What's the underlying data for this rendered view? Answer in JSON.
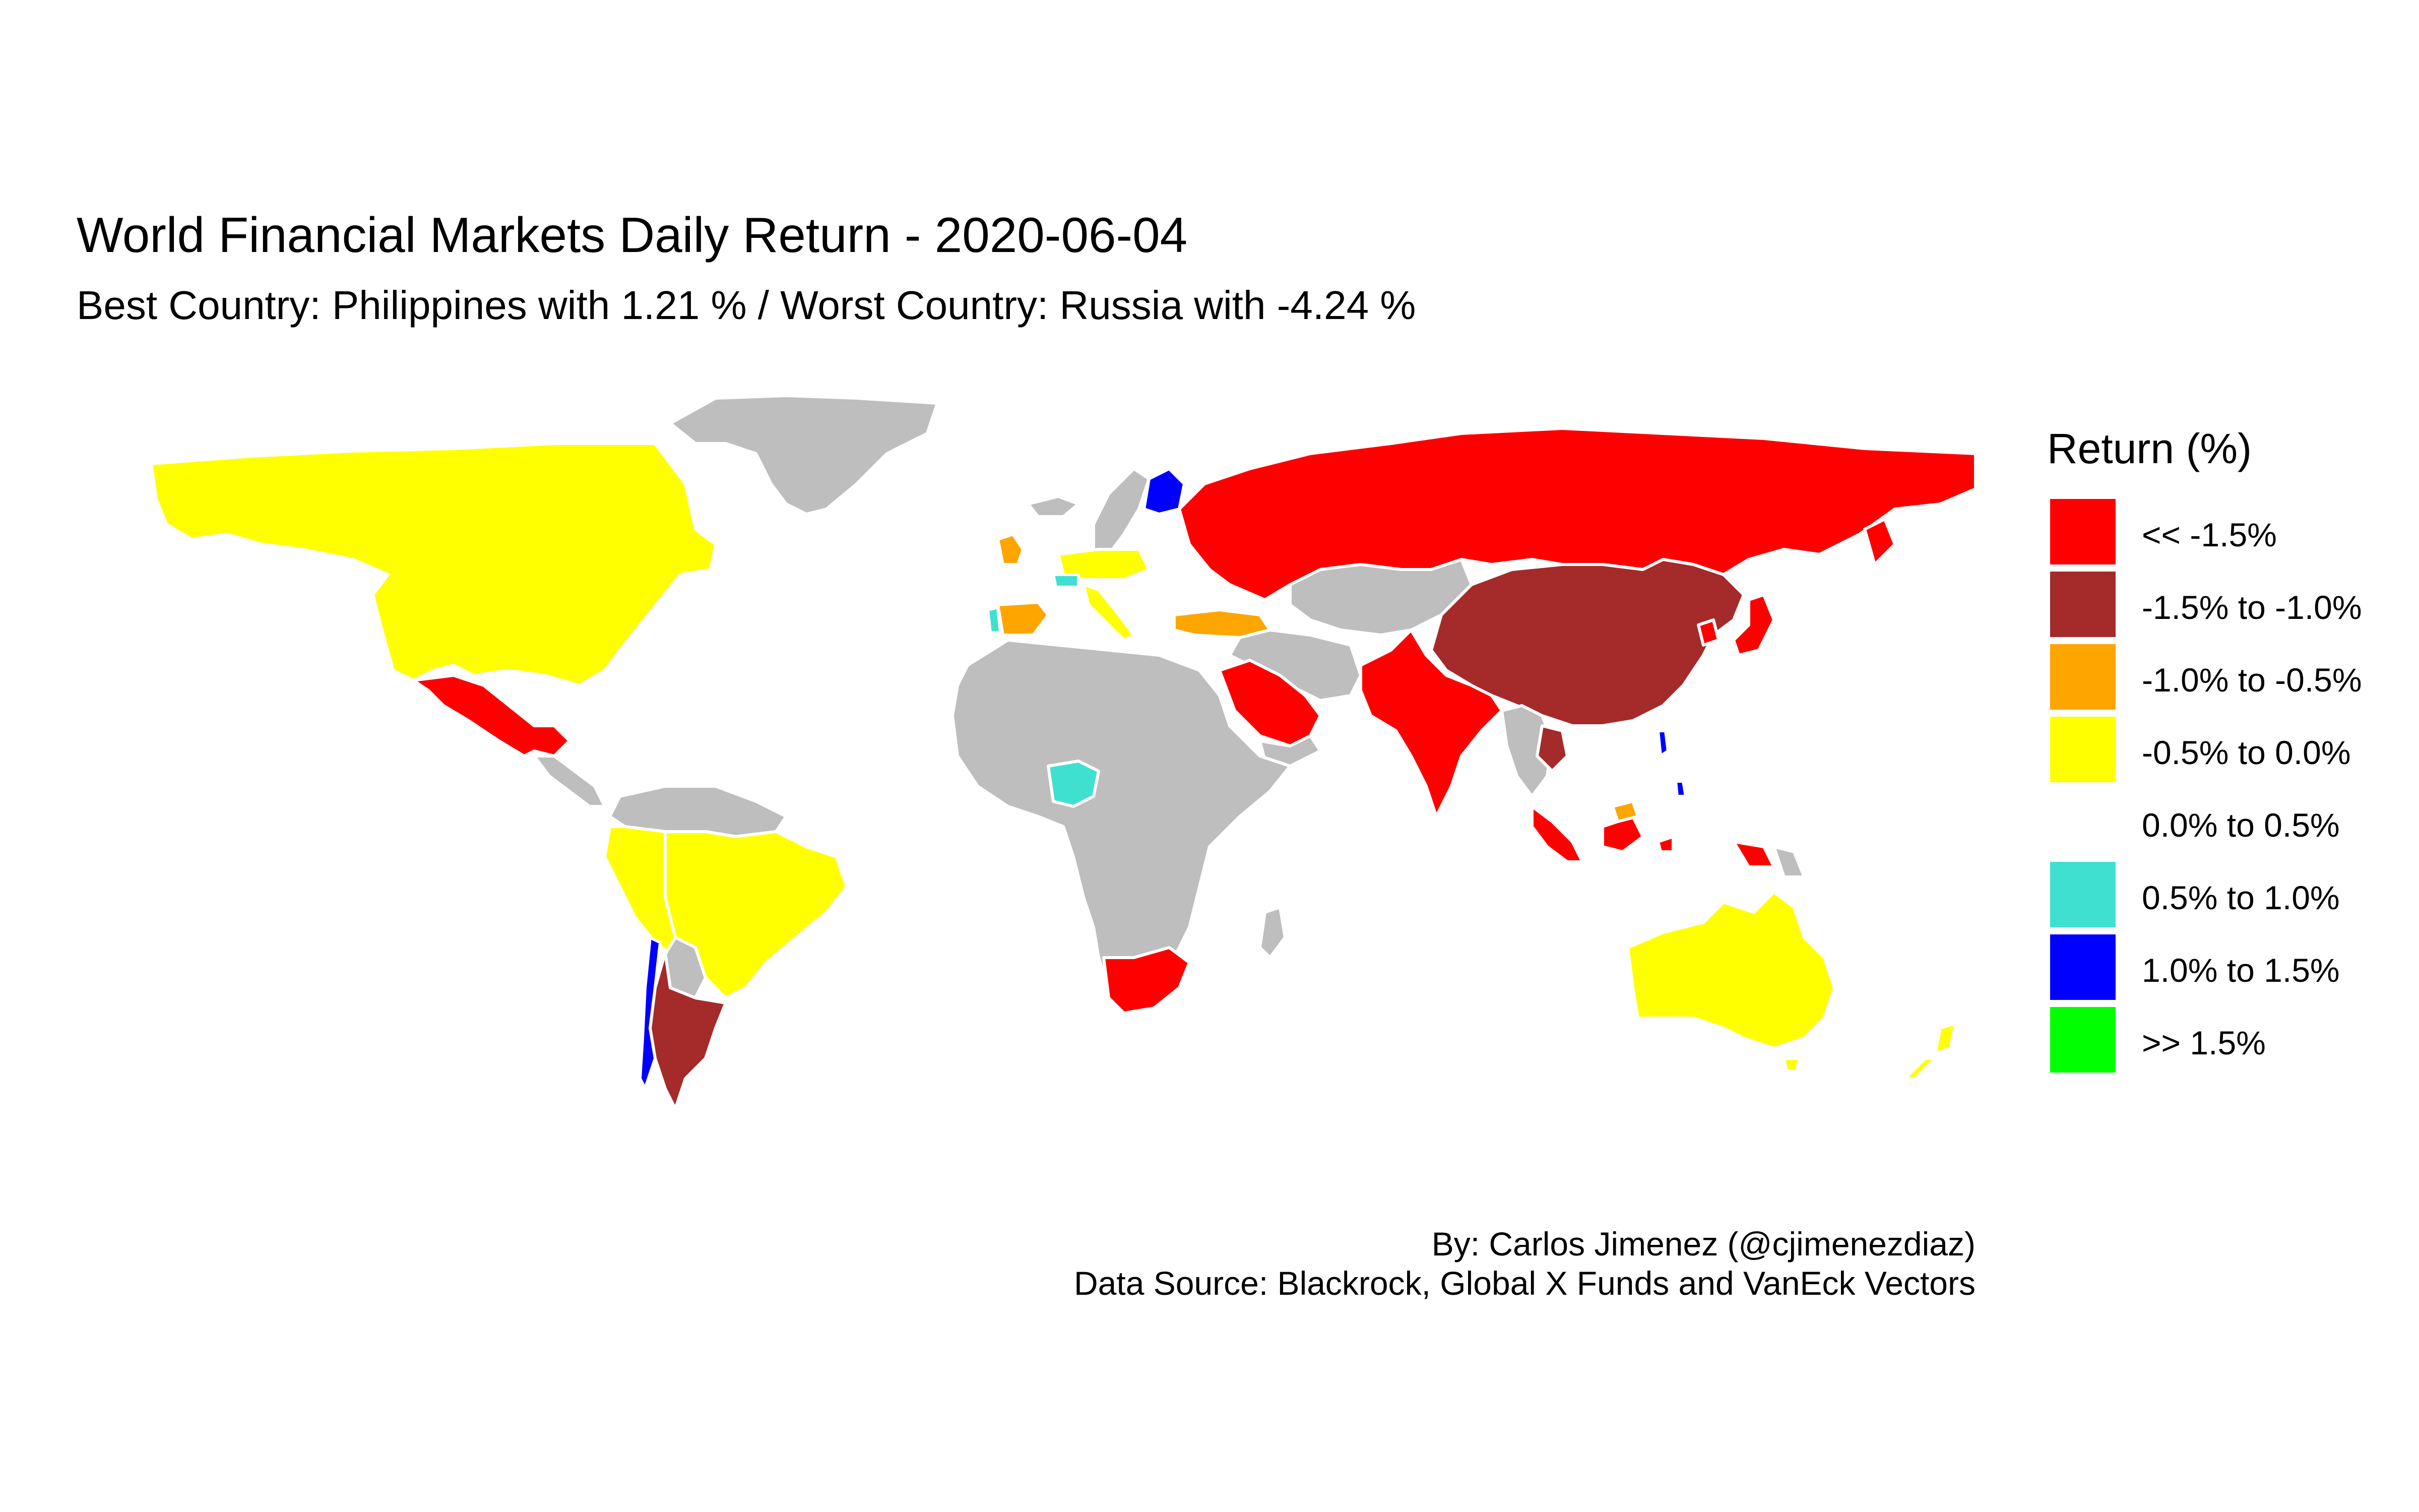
{
  "title": "World Financial Markets Daily Return - 2020-06-04",
  "subtitle": "Best Country:  Philippines  with  1.21 % / Worst Country:  Russia  with  -4.24 %",
  "legend": {
    "title": "Return (%)",
    "items": [
      {
        "label": "<< -1.5%",
        "color": "#FF0000"
      },
      {
        "label": "-1.5% to -1.0%",
        "color": "#A52A2A"
      },
      {
        "label": "-1.0% to -0.5%",
        "color": "#FFA500"
      },
      {
        "label": "-0.5% to 0.0%",
        "color": "#FFFF00"
      },
      {
        "label": "0.0% to 0.5%",
        "color": "#FFFFFF"
      },
      {
        "label": "0.5% to 1.0%",
        "color": "#40E0D0"
      },
      {
        "label": "1.0% to 1.5%",
        "color": "#0000FF"
      },
      {
        "label": ">> 1.5%",
        "color": "#00FF00"
      }
    ]
  },
  "caption": {
    "author": "By: Carlos Jimenez (@cjimenezdiaz)",
    "source": "Data Source: Blackrock, Global X Funds and VanEck Vectors"
  },
  "colors": {
    "no_data": "#BEBEBE",
    "border": "#FFFFFF"
  },
  "regions": [
    {
      "name": "Canada / USA",
      "bin": "-0.5% to 0.0%"
    },
    {
      "name": "Mexico",
      "bin": "<< -1.5%"
    },
    {
      "name": "Brazil",
      "bin": "-0.5% to 0.0%"
    },
    {
      "name": "Peru",
      "bin": "-0.5% to 0.0%"
    },
    {
      "name": "Colombia",
      "bin": "-0.5% to 0.0%"
    },
    {
      "name": "Argentina",
      "bin": "-1.5% to -1.0%"
    },
    {
      "name": "Chile",
      "bin": "1.0% to 1.5%"
    },
    {
      "name": "Russia",
      "bin": "<< -1.5%"
    },
    {
      "name": "China",
      "bin": "-1.5% to -1.0%"
    },
    {
      "name": "India",
      "bin": "<< -1.5%"
    },
    {
      "name": "Saudi Arabia",
      "bin": "<< -1.5%"
    },
    {
      "name": "Turkey",
      "bin": "-1.0% to -0.5%"
    },
    {
      "name": "Spain",
      "bin": "-1.0% to -0.5%"
    },
    {
      "name": "Nigeria",
      "bin": "0.5% to 1.0%"
    },
    {
      "name": "South Africa",
      "bin": "<< -1.5%"
    },
    {
      "name": "Australia",
      "bin": "-0.5% to 0.0%"
    },
    {
      "name": "Indonesia",
      "bin": "<< -1.5%"
    },
    {
      "name": "Philippines",
      "bin": "1.0% to 1.5%"
    },
    {
      "name": "Finland",
      "bin": "1.0% to 1.5%"
    }
  ]
}
